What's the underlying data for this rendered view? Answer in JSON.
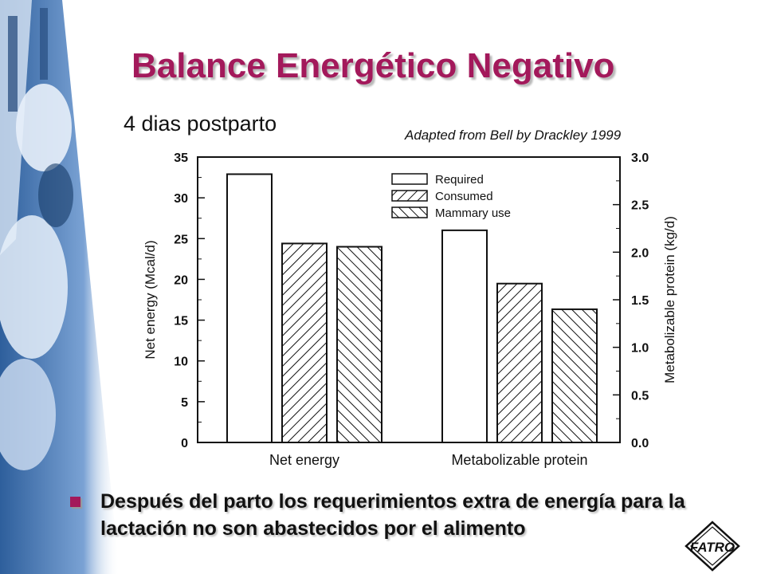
{
  "slide": {
    "title": "Balance Energético Negativo",
    "subtitle": "4 dias postparto",
    "credit": "Adapted from Bell by Drackley 1999",
    "bullet": "Después del parto los requerimientos extra de energía para la lactación no son abastecidos por el alimento",
    "logo_text": "FATRO",
    "accent_color": "#a3195b",
    "photo_tint": "#4f7fb8"
  },
  "chart_data": {
    "type": "bar",
    "categories": [
      "Net energy",
      "Metabolizable protein"
    ],
    "series": [
      {
        "name": "Required",
        "values": [
          32.9,
          2.23
        ]
      },
      {
        "name": "Consumed",
        "values": [
          24.4,
          1.67
        ]
      },
      {
        "name": "Mammary use",
        "values": [
          24.0,
          1.4
        ]
      }
    ],
    "ylabel": "Net energy (Mcal/d)",
    "ylim": [
      0,
      35
    ],
    "yticks": [
      0,
      5,
      10,
      15,
      20,
      25,
      30,
      35
    ],
    "y2label": "Metabolizable protein (kg/d)",
    "y2lim": [
      0,
      3.0
    ],
    "y2ticks": [
      "0.0",
      "0.5",
      "1.0",
      "1.5",
      "2.0",
      "2.5",
      "3.0"
    ],
    "axis_map": {
      "Net energy": "left",
      "Metabolizable protein": "right"
    },
    "legend_position": "top-right",
    "grid": false
  }
}
